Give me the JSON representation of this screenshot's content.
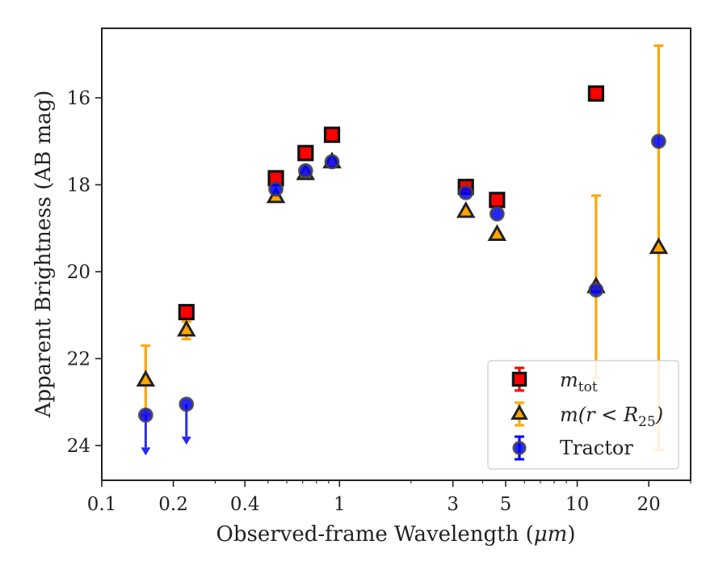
{
  "chart_data": {
    "type": "scatter",
    "xlabel_prefix": "Observed-frame Wavelength (",
    "xlabel_unit": "μm",
    "xlabel_suffix": ")",
    "ylabel": "Apparent Brightness (AB mag)",
    "x_scale": "log",
    "xlim": [
      0.1,
      30
    ],
    "ylim": [
      24.8,
      14.4
    ],
    "y_inverted": true,
    "x_ticks": [
      0.1,
      0.2,
      0.4,
      1,
      3,
      5,
      10,
      20
    ],
    "x_tick_labels": [
      "0.1",
      "0.2",
      "0.4",
      "1",
      "3",
      "5",
      "10",
      "20"
    ],
    "y_ticks": [
      16,
      18,
      20,
      22,
      24
    ],
    "y_tick_labels": [
      "16",
      "18",
      "20",
      "22",
      "24"
    ],
    "grid": false,
    "legend_position": "bottom-right",
    "series": [
      {
        "name": "m_tot",
        "legend_label_base": "m",
        "legend_label_sub": "tot",
        "marker": "square",
        "color": "#ff0000",
        "points": [
          {
            "x": 0.227,
            "y": 20.93
          },
          {
            "x": 0.54,
            "y": 17.85
          },
          {
            "x": 0.72,
            "y": 17.27
          },
          {
            "x": 0.93,
            "y": 16.85
          },
          {
            "x": 3.4,
            "y": 18.05
          },
          {
            "x": 4.6,
            "y": 18.35
          },
          {
            "x": 12.0,
            "y": 15.9
          }
        ]
      },
      {
        "name": "m(r < R25)",
        "legend_label_base": "m",
        "legend_label_mid": "(r < R",
        "legend_label_sub": "25",
        "legend_label_end": ")",
        "marker": "triangle",
        "color": "#ffa500",
        "points": [
          {
            "x": 0.153,
            "y": 22.5,
            "err_low": 0.8,
            "err_high": 0.8
          },
          {
            "x": 0.227,
            "y": 21.35,
            "err_low": 0.2,
            "err_high": 0.2
          },
          {
            "x": 0.54,
            "y": 18.28
          },
          {
            "x": 0.72,
            "y": 17.75
          },
          {
            "x": 0.93,
            "y": 17.48
          },
          {
            "x": 3.4,
            "y": 18.62
          },
          {
            "x": 4.6,
            "y": 19.15
          },
          {
            "x": 12.0,
            "y": 20.35,
            "err_low": 2.1,
            "err_high": 2.1
          },
          {
            "x": 22.0,
            "y": 19.45,
            "err_low": 4.65,
            "err_high": 4.65
          }
        ]
      },
      {
        "name": "Tractor",
        "marker": "circle",
        "color": "#0000ff",
        "points": [
          {
            "x": 0.153,
            "y": 23.3,
            "upper_limit": true
          },
          {
            "x": 0.227,
            "y": 23.05,
            "upper_limit": true
          },
          {
            "x": 0.54,
            "y": 18.1
          },
          {
            "x": 0.72,
            "y": 17.68
          },
          {
            "x": 0.93,
            "y": 17.47
          },
          {
            "x": 3.4,
            "y": 18.18
          },
          {
            "x": 4.6,
            "y": 18.67
          },
          {
            "x": 12.0,
            "y": 20.42
          },
          {
            "x": 22.0,
            "y": 17.0
          }
        ]
      }
    ],
    "legend_entries": [
      "m_tot",
      "m(r < R25)",
      "Tractor"
    ]
  }
}
